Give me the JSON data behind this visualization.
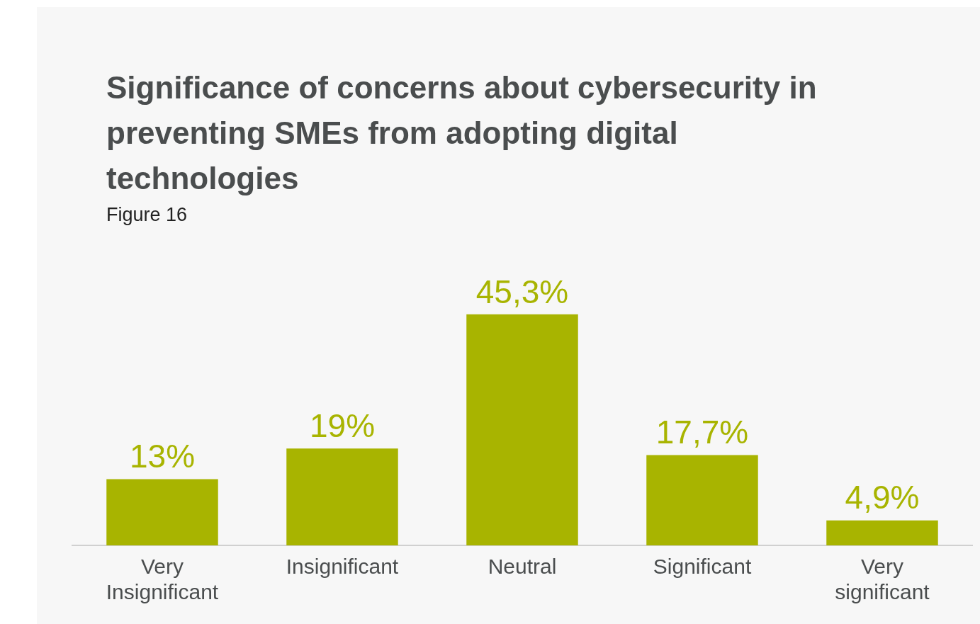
{
  "chart_data": {
    "type": "bar",
    "title": "Significance of concerns about cybersecurity in preventing SMEs from adopting digital technologies",
    "subtitle": "Figure 16",
    "categories": [
      "Very Insignificant",
      "Insignificant",
      "Neutral",
      "Significant",
      "Very significant"
    ],
    "values": [
      13,
      19,
      45.3,
      17.7,
      4.9
    ],
    "value_labels": [
      "13%",
      "19%",
      "45,3%",
      "17,7%",
      "4,9%"
    ],
    "color": "#a8b400",
    "grid": false,
    "legend": false
  }
}
